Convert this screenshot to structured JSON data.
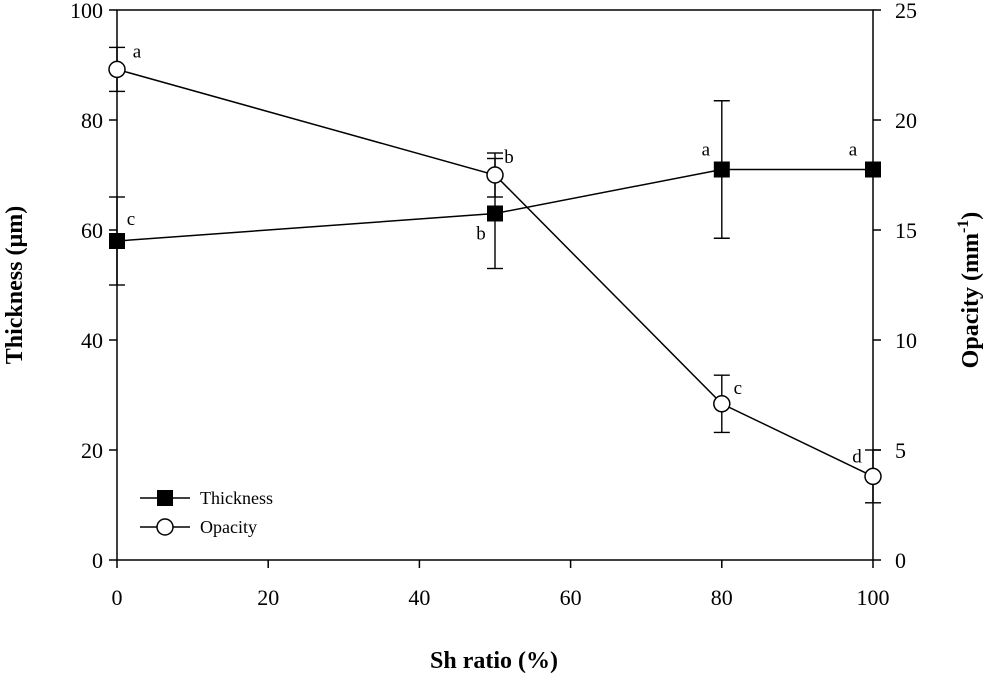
{
  "chart_data": {
    "type": "line",
    "xlabel": "Sh ratio (%)",
    "ylabel": "Thickness (µm)",
    "y2label_main": "Opacity (mm",
    "y2label_sup": "-1",
    "y2label_close": ")",
    "x": [
      0,
      50,
      80,
      100
    ],
    "xlim": [
      0,
      100
    ],
    "ylim": [
      0,
      100
    ],
    "y2lim": [
      0,
      25
    ],
    "x_ticks": [
      "0",
      "20",
      "40",
      "60",
      "80",
      "100"
    ],
    "y_ticks": [
      "0",
      "20",
      "40",
      "60",
      "80",
      "100"
    ],
    "y2_ticks": [
      "0",
      "5",
      "10",
      "15",
      "20",
      "25"
    ],
    "legend_position": "bottom-left",
    "series": [
      {
        "name": "Thickness",
        "axis": "left",
        "marker": "filled-square",
        "values": [
          58,
          63,
          71,
          71
        ],
        "error": [
          8,
          10,
          12.5,
          0
        ],
        "sig_labels": [
          "c",
          "b",
          "a",
          "a"
        ]
      },
      {
        "name": "Opacity",
        "axis": "right",
        "marker": "open-circle",
        "values": [
          22.3,
          17.5,
          7.1,
          3.8
        ],
        "error": [
          1,
          1,
          1.3,
          1.2
        ],
        "sig_labels": [
          "a",
          "b",
          "c",
          "d"
        ]
      }
    ]
  }
}
